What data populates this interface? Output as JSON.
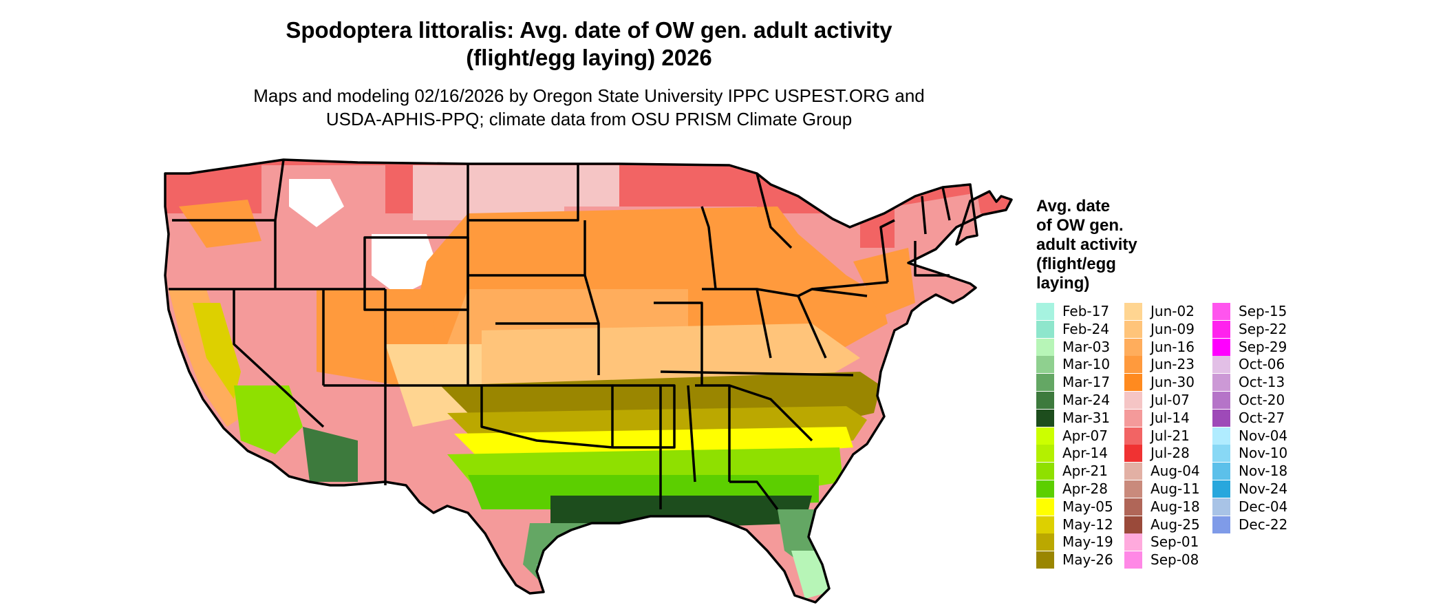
{
  "title": {
    "line1": "Spodoptera littoralis: Avg. date of OW gen. adult activity",
    "line2": "(flight/egg laying) 2026"
  },
  "subtitle": {
    "line1": "Maps and modeling 02/16/2026 by Oregon State University IPPC USPEST.ORG and",
    "line2": "USDA-APHIS-PPQ; climate data from OSU PRISM Climate Group"
  },
  "legend": {
    "title_lines": [
      "Avg. date",
      "of OW gen.",
      "adult activity",
      "(flight/egg",
      "laying)"
    ],
    "items": [
      {
        "label": "Feb-17",
        "color": "#a6f3e0"
      },
      {
        "label": "Feb-24",
        "color": "#8ee6cc"
      },
      {
        "label": "Mar-03",
        "color": "#b7f5b7"
      },
      {
        "label": "Mar-10",
        "color": "#8fd08f"
      },
      {
        "label": "Mar-17",
        "color": "#64a764"
      },
      {
        "label": "Mar-24",
        "color": "#3d7a3d"
      },
      {
        "label": "Mar-31",
        "color": "#1d4d1d"
      },
      {
        "label": "Apr-07",
        "color": "#ccff00"
      },
      {
        "label": "Apr-14",
        "color": "#b4f000"
      },
      {
        "label": "Apr-21",
        "color": "#8fe000"
      },
      {
        "label": "Apr-28",
        "color": "#5ccf00"
      },
      {
        "label": "May-05",
        "color": "#ffff00"
      },
      {
        "label": "May-12",
        "color": "#ddd000"
      },
      {
        "label": "May-19",
        "color": "#bba800"
      },
      {
        "label": "May-26",
        "color": "#9a8600"
      },
      {
        "label": "Jun-02",
        "color": "#ffd591"
      },
      {
        "label": "Jun-09",
        "color": "#ffc47a"
      },
      {
        "label": "Jun-16",
        "color": "#ffad5c"
      },
      {
        "label": "Jun-23",
        "color": "#ff9a3d"
      },
      {
        "label": "Jun-30",
        "color": "#ff8a1f"
      },
      {
        "label": "Jul-07",
        "color": "#f5c5c5"
      },
      {
        "label": "Jul-14",
        "color": "#f49a9a"
      },
      {
        "label": "Jul-21",
        "color": "#f26464"
      },
      {
        "label": "Jul-28",
        "color": "#f03232"
      },
      {
        "label": "Aug-04",
        "color": "#e2b0a4"
      },
      {
        "label": "Aug-11",
        "color": "#c98a7c"
      },
      {
        "label": "Aug-18",
        "color": "#b06658"
      },
      {
        "label": "Aug-25",
        "color": "#9a4a3a"
      },
      {
        "label": "Sep-01",
        "color": "#ffaadd"
      },
      {
        "label": "Sep-08",
        "color": "#ff88e6"
      },
      {
        "label": "Sep-15",
        "color": "#ff55ee"
      },
      {
        "label": "Sep-22",
        "color": "#ff22ee"
      },
      {
        "label": "Sep-29",
        "color": "#ff00ff"
      },
      {
        "label": "Oct-06",
        "color": "#e2bfe6"
      },
      {
        "label": "Oct-13",
        "color": "#cc99d6"
      },
      {
        "label": "Oct-20",
        "color": "#b574c8"
      },
      {
        "label": "Oct-27",
        "color": "#9e4ab8"
      },
      {
        "label": "Nov-04",
        "color": "#b0ecff"
      },
      {
        "label": "Nov-10",
        "color": "#88d8f5"
      },
      {
        "label": "Nov-18",
        "color": "#5cc0ea"
      },
      {
        "label": "Nov-24",
        "color": "#28a7dd"
      },
      {
        "label": "Dec-04",
        "color": "#a8c3e6"
      },
      {
        "label": "Dec-22",
        "color": "#7f9be8"
      }
    ]
  }
}
